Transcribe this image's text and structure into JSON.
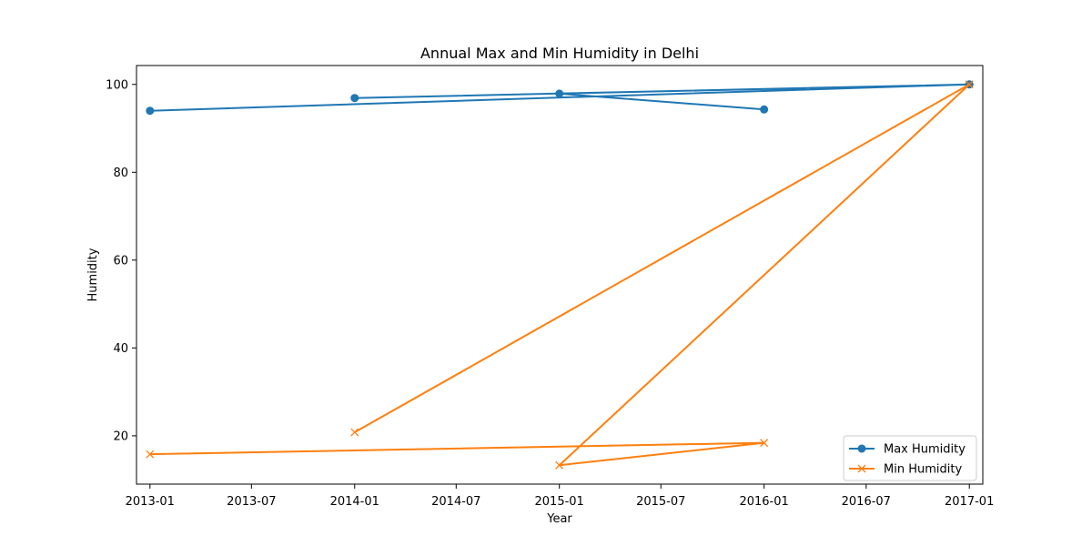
{
  "chart_data": {
    "type": "line",
    "title": "Annual Max and Min Humidity in Delhi",
    "xlabel": "Year",
    "ylabel": "Humidity",
    "x_type": "date",
    "xlim": [
      "2012-12-08",
      "2017-01-25"
    ],
    "ylim": [
      9.0,
      104.3
    ],
    "x_ticks": [
      "2013-01",
      "2013-07",
      "2014-01",
      "2014-07",
      "2015-01",
      "2015-07",
      "2016-01",
      "2016-07",
      "2017-01"
    ],
    "y_ticks": [
      20,
      40,
      60,
      80,
      100
    ],
    "grid": false,
    "legend_position": "lower right",
    "series": [
      {
        "name": "Max Humidity",
        "color": "#1f77b4",
        "marker": "circle",
        "x": [
          "2013-01-01",
          "2017-01-01",
          "2014-01-01",
          "2017-01-01",
          "2015-01-01",
          "2016-01-01"
        ],
        "y": [
          94.0,
          100.0,
          96.9,
          100.0,
          97.9,
          94.3
        ]
      },
      {
        "name": "Min Humidity",
        "color": "#ff7f0e",
        "marker": "x",
        "x": [
          "2013-01-01",
          "2016-01-01",
          "2015-01-01",
          "2017-01-01",
          "2014-01-01"
        ],
        "y": [
          15.8,
          18.4,
          13.3,
          100.0,
          20.8
        ]
      }
    ]
  }
}
